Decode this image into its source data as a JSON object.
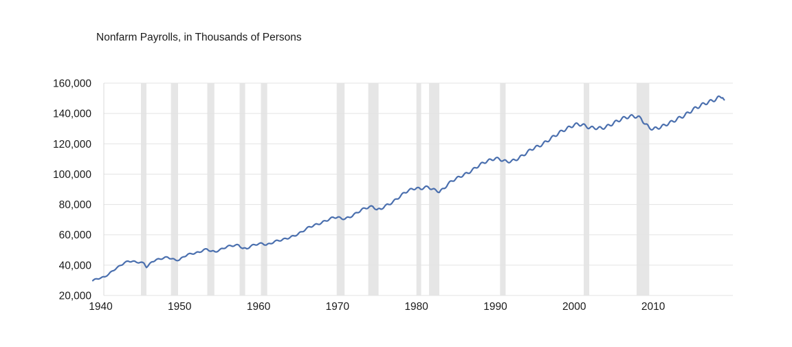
{
  "chart_data": {
    "type": "line",
    "title": "Nonfarm Payrolls, in Thousands of Persons",
    "xlabel": "",
    "ylabel": "",
    "xlim": [
      1939,
      2019
    ],
    "ylim": [
      20000,
      160000
    ],
    "x_ticks": [
      1940,
      1950,
      1960,
      1970,
      1980,
      1990,
      2000,
      2010
    ],
    "x_tick_labels": [
      "1940",
      "1950",
      "1960",
      "1970",
      "1980",
      "1990",
      "2000",
      "2010"
    ],
    "y_ticks": [
      20000,
      40000,
      60000,
      80000,
      100000,
      120000,
      140000,
      160000
    ],
    "y_tick_labels": [
      "20,000",
      "40,000",
      "60,000",
      "80,000",
      "100,000",
      "120,000",
      "140,000",
      "160,000"
    ],
    "grid": "horizontal",
    "legend": "none",
    "line_color": "#4a6fae",
    "recession_color": "#e6e6e6",
    "recessions": [
      [
        1945.1,
        1945.8
      ],
      [
        1948.9,
        1949.8
      ],
      [
        1953.5,
        1954.4
      ],
      [
        1957.6,
        1958.3
      ],
      [
        1960.3,
        1961.1
      ],
      [
        1969.9,
        1970.9
      ],
      [
        1973.9,
        1975.2
      ],
      [
        1980.0,
        1980.6
      ],
      [
        1981.6,
        1982.9
      ],
      [
        1990.6,
        1991.3
      ],
      [
        2001.2,
        2001.9
      ],
      [
        2007.9,
        2009.5
      ]
    ],
    "series": [
      {
        "values": [
          [
            1939.0,
            29800
          ],
          [
            1939.5,
            31000
          ],
          [
            1940.0,
            31500
          ],
          [
            1940.5,
            32300
          ],
          [
            1941.0,
            34000
          ],
          [
            1941.5,
            36200
          ],
          [
            1942.0,
            38000
          ],
          [
            1942.5,
            39800
          ],
          [
            1943.0,
            41500
          ],
          [
            1943.5,
            42600
          ],
          [
            1944.0,
            42500
          ],
          [
            1944.5,
            42000
          ],
          [
            1945.0,
            41800
          ],
          [
            1945.5,
            41200
          ],
          [
            1945.8,
            38800
          ],
          [
            1946.0,
            39500
          ],
          [
            1946.5,
            42200
          ],
          [
            1947.0,
            43500
          ],
          [
            1947.5,
            44000
          ],
          [
            1948.0,
            44800
          ],
          [
            1948.5,
            45200
          ],
          [
            1949.0,
            44200
          ],
          [
            1949.5,
            43300
          ],
          [
            1950.0,
            43500
          ],
          [
            1950.5,
            45500
          ],
          [
            1951.0,
            47000
          ],
          [
            1951.5,
            47500
          ],
          [
            1952.0,
            48000
          ],
          [
            1952.5,
            48500
          ],
          [
            1953.0,
            50000
          ],
          [
            1953.5,
            50500
          ],
          [
            1954.0,
            49200
          ],
          [
            1954.5,
            48800
          ],
          [
            1955.0,
            49800
          ],
          [
            1955.5,
            51000
          ],
          [
            1956.0,
            52200
          ],
          [
            1956.5,
            52800
          ],
          [
            1957.0,
            53000
          ],
          [
            1957.5,
            53200
          ],
          [
            1958.0,
            51000
          ],
          [
            1958.5,
            50800
          ],
          [
            1959.0,
            52500
          ],
          [
            1959.5,
            53500
          ],
          [
            1960.0,
            54000
          ],
          [
            1960.5,
            54300
          ],
          [
            1961.0,
            53300
          ],
          [
            1961.5,
            54200
          ],
          [
            1962.0,
            55500
          ],
          [
            1962.5,
            56200
          ],
          [
            1963.0,
            56700
          ],
          [
            1963.5,
            57500
          ],
          [
            1964.0,
            58300
          ],
          [
            1964.5,
            59300
          ],
          [
            1965.0,
            60500
          ],
          [
            1965.5,
            62000
          ],
          [
            1966.0,
            63800
          ],
          [
            1966.5,
            65300
          ],
          [
            1967.0,
            66200
          ],
          [
            1967.5,
            67000
          ],
          [
            1968.0,
            68000
          ],
          [
            1968.5,
            69200
          ],
          [
            1969.0,
            70400
          ],
          [
            1969.5,
            71500
          ],
          [
            1970.0,
            71600
          ],
          [
            1970.5,
            70700
          ],
          [
            1971.0,
            70700
          ],
          [
            1971.5,
            71500
          ],
          [
            1972.0,
            73000
          ],
          [
            1972.5,
            74600
          ],
          [
            1973.0,
            76400
          ],
          [
            1973.5,
            77500
          ],
          [
            1974.0,
            78300
          ],
          [
            1974.5,
            78600
          ],
          [
            1975.0,
            76600
          ],
          [
            1975.5,
            76900
          ],
          [
            1976.0,
            79000
          ],
          [
            1976.5,
            80000
          ],
          [
            1977.0,
            81600
          ],
          [
            1977.5,
            83600
          ],
          [
            1978.0,
            85600
          ],
          [
            1978.5,
            87800
          ],
          [
            1979.0,
            89200
          ],
          [
            1979.5,
            90200
          ],
          [
            1980.0,
            90800
          ],
          [
            1980.5,
            90200
          ],
          [
            1981.0,
            91200
          ],
          [
            1981.5,
            91500
          ],
          [
            1982.0,
            90100
          ],
          [
            1982.5,
            89300
          ],
          [
            1982.9,
            88400
          ],
          [
            1983.5,
            90500
          ],
          [
            1984.0,
            93500
          ],
          [
            1984.5,
            95500
          ],
          [
            1985.0,
            97000
          ],
          [
            1985.5,
            98200
          ],
          [
            1986.0,
            99600
          ],
          [
            1986.5,
            100700
          ],
          [
            1987.0,
            102300
          ],
          [
            1987.5,
            104200
          ],
          [
            1988.0,
            106000
          ],
          [
            1988.5,
            107500
          ],
          [
            1989.0,
            108700
          ],
          [
            1989.5,
            109500
          ],
          [
            1990.0,
            110400
          ],
          [
            1990.5,
            110000
          ],
          [
            1991.0,
            108900
          ],
          [
            1991.5,
            108200
          ],
          [
            1992.0,
            108500
          ],
          [
            1992.5,
            109300
          ],
          [
            1993.0,
            110700
          ],
          [
            1993.5,
            112400
          ],
          [
            1994.0,
            114200
          ],
          [
            1994.5,
            116200
          ],
          [
            1995.0,
            117500
          ],
          [
            1995.5,
            118400
          ],
          [
            1996.0,
            119800
          ],
          [
            1996.5,
            121600
          ],
          [
            1997.0,
            123400
          ],
          [
            1997.5,
            125200
          ],
          [
            1998.0,
            126900
          ],
          [
            1998.5,
            128600
          ],
          [
            1999.0,
            129800
          ],
          [
            1999.5,
            131200
          ],
          [
            2000.0,
            132500
          ],
          [
            2000.5,
            132900
          ],
          [
            2001.0,
            132600
          ],
          [
            2001.5,
            131500
          ],
          [
            2002.0,
            130600
          ],
          [
            2002.5,
            130500
          ],
          [
            2003.0,
            130400
          ],
          [
            2003.5,
            130200
          ],
          [
            2004.0,
            131200
          ],
          [
            2004.5,
            132200
          ],
          [
            2005.0,
            133800
          ],
          [
            2005.5,
            135000
          ],
          [
            2006.0,
            136500
          ],
          [
            2006.5,
            137300
          ],
          [
            2007.0,
            138000
          ],
          [
            2007.5,
            138200
          ],
          [
            2008.0,
            137900
          ],
          [
            2008.5,
            136400
          ],
          [
            2009.0,
            133000
          ],
          [
            2009.5,
            130700
          ],
          [
            2010.0,
            129700
          ],
          [
            2010.5,
            130400
          ],
          [
            2011.0,
            131100
          ],
          [
            2011.5,
            132400
          ],
          [
            2012.0,
            133600
          ],
          [
            2012.5,
            134800
          ],
          [
            2013.0,
            136200
          ],
          [
            2013.5,
            137500
          ],
          [
            2014.0,
            138800
          ],
          [
            2014.5,
            140600
          ],
          [
            2015.0,
            142400
          ],
          [
            2015.5,
            143900
          ],
          [
            2016.0,
            145200
          ],
          [
            2016.5,
            146500
          ],
          [
            2017.0,
            147500
          ],
          [
            2017.5,
            148400
          ],
          [
            2018.0,
            149600
          ],
          [
            2018.5,
            150900
          ],
          [
            2018.8,
            151400
          ],
          [
            2019.0,
            149000
          ]
        ]
      }
    ]
  }
}
